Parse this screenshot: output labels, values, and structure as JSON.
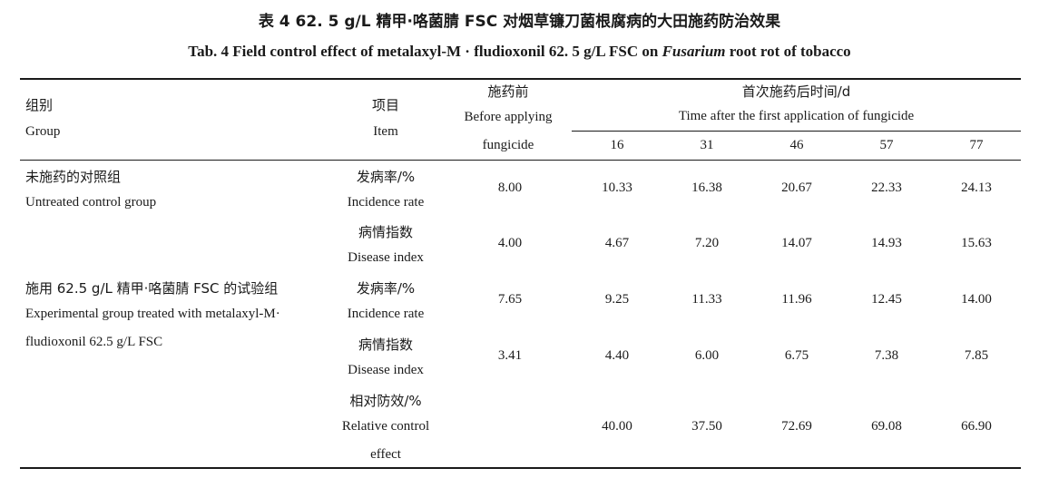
{
  "title": {
    "cn": "表 4    62. 5 g/L 精甲·咯菌腈 FSC 对烟草镰刀菌根腐病的大田施药防治效果",
    "en_prefix": "Tab. 4    Field control effect of metalaxyl-M · fludioxonil 62. 5 g/L FSC on ",
    "en_italic": "Fusarium",
    "en_suffix": " root rot of tobacco"
  },
  "header": {
    "group_cn": "组别",
    "group_en": "Group",
    "item_cn": "项目",
    "item_en": "Item",
    "before_cn": "施药前",
    "before_en1": "Before applying",
    "before_en2": "fungicide",
    "after_cn": "首次施药后时间/d",
    "after_en": "Time after the first application of fungicide",
    "days": [
      "16",
      "31",
      "46",
      "57",
      "77"
    ]
  },
  "rows": {
    "control_group_cn": "未施药的对照组",
    "control_group_en": "Untreated control group",
    "exp_group_cn": "施用 62.5 g/L 精甲·咯菌腈 FSC 的试验组",
    "exp_group_en1": "Experimental group treated with metalaxyl-M·",
    "exp_group_en2": "fludioxonil 62.5 g/L FSC",
    "incidence_cn": "发病率/%",
    "incidence_en": "Incidence rate",
    "disease_cn": "病情指数",
    "disease_en": "Disease index",
    "relative_cn": "相对防效/%",
    "relative_en1": "Relative control",
    "relative_en2": "effect",
    "control_incidence": [
      "8.00",
      "10.33",
      "16.38",
      "20.67",
      "22.33",
      "24.13"
    ],
    "control_disease": [
      "4.00",
      "4.67",
      "7.20",
      "14.07",
      "14.93",
      "15.63"
    ],
    "exp_incidence": [
      "7.65",
      "9.25",
      "11.33",
      "11.96",
      "12.45",
      "14.00"
    ],
    "exp_disease": [
      "3.41",
      "4.40",
      "6.00",
      "6.75",
      "7.38",
      "7.85"
    ],
    "relative_effect": [
      "",
      "40.00",
      "37.50",
      "72.69",
      "69.08",
      "66.90"
    ]
  }
}
